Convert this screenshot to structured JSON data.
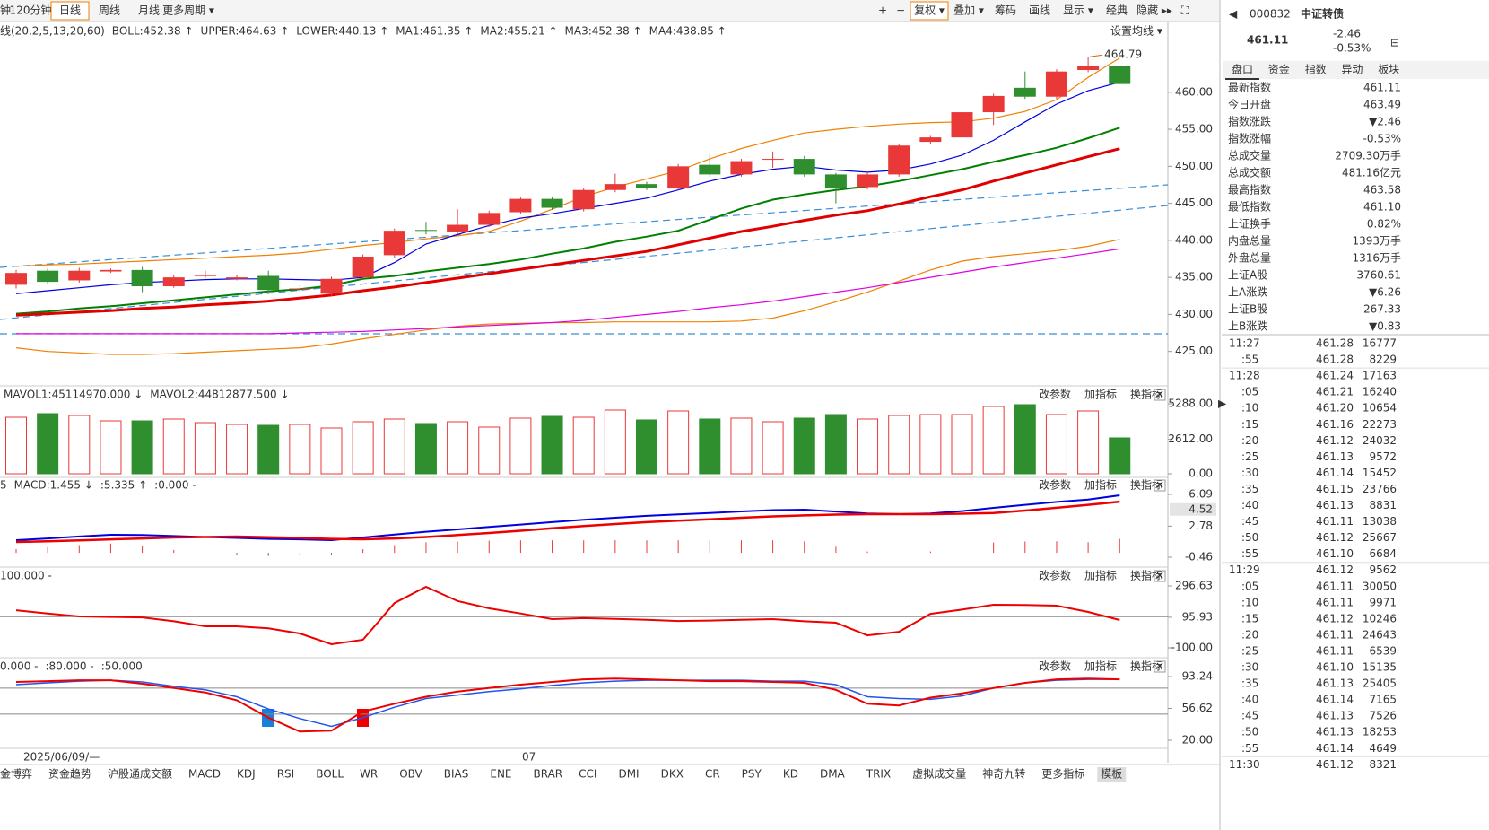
{
  "toolbar": {
    "left": [
      "钟",
      "120分钟",
      "日线",
      "周线",
      "月线",
      "更多周期 ▾"
    ],
    "active": 2,
    "right": [
      "+",
      "−",
      "复权 ▾",
      "叠加 ▾",
      "筹码",
      "画线",
      "显示 ▾",
      "经典",
      "隐藏 ▸▸",
      "⛶"
    ]
  },
  "panel_controls": [
    "改参数",
    "加指标",
    "换指标"
  ],
  "main_chart": {
    "legend": [
      {
        "text": "线(20,2,5,13,20,60)",
        "color": "#333333"
      },
      {
        "text": "BOLL:452.38 ↑",
        "color": "#e00000"
      },
      {
        "text": "UPPER:464.63 ↑",
        "color": "#f08000"
      },
      {
        "text": "LOWER:440.13 ↑",
        "color": "#f08000"
      },
      {
        "text": "MA1:461.35 ↑",
        "color": "#0000e0"
      },
      {
        "text": "MA2:455.21 ↑",
        "color": "#008000"
      },
      {
        "text": "MA3:452.38 ↑",
        "color": "#e00000"
      },
      {
        "text": "MA4:438.85 ↑",
        "color": "#e000e0"
      }
    ],
    "settings_button": "设置均线 ▾",
    "annotation": "464.79",
    "ylim": [
      420.6,
      467
    ],
    "yticks": [
      {
        "value": 460,
        "label": "460.00"
      },
      {
        "value": 455,
        "label": "455.00"
      },
      {
        "value": 450,
        "label": "450.00"
      },
      {
        "value": 445,
        "label": "445.00"
      },
      {
        "value": 440,
        "label": "440.00"
      },
      {
        "value": 435,
        "label": "435.00"
      },
      {
        "value": 430,
        "label": "430.00"
      },
      {
        "value": 425,
        "label": "425.00"
      }
    ],
    "candles": {
      "open": [
        434.0,
        435.9,
        434.6,
        435.8,
        436.0,
        433.8,
        435.2,
        434.8,
        435.2,
        433.4,
        432.8,
        435.0,
        438.0,
        441.4,
        441.2,
        442.1,
        443.8,
        445.6,
        444.2,
        446.8,
        447.6,
        447.0,
        450.2,
        448.9,
        451.0,
        451.0,
        448.9,
        447.2,
        448.9,
        453.3,
        453.9,
        457.3,
        460.6,
        459.4,
        463.0,
        463.49
      ],
      "high": [
        436.0,
        436.2,
        436.3,
        436.2,
        436.4,
        435.3,
        435.9,
        435.3,
        435.9,
        433.9,
        435.1,
        438.1,
        441.6,
        442.5,
        444.2,
        444.0,
        445.9,
        445.9,
        447.1,
        449.0,
        447.9,
        450.3,
        451.6,
        451.0,
        452.0,
        451.4,
        449.1,
        449.1,
        453.0,
        454.1,
        457.6,
        459.8,
        462.8,
        463.1,
        464.79,
        463.58
      ],
      "low": [
        433.5,
        434.1,
        434.3,
        435.6,
        433.0,
        433.6,
        434.9,
        434.6,
        433.0,
        433.1,
        432.5,
        434.8,
        437.7,
        440.8,
        440.9,
        441.8,
        443.5,
        444.1,
        443.9,
        446.5,
        446.8,
        446.8,
        448.6,
        448.6,
        449.8,
        448.6,
        445.0,
        446.9,
        448.6,
        453.0,
        453.6,
        455.6,
        459.1,
        459.1,
        462.7,
        461.1
      ],
      "close": [
        435.6,
        434.4,
        435.9,
        436.0,
        433.8,
        435.0,
        435.3,
        435.0,
        433.3,
        433.5,
        434.8,
        437.8,
        441.3,
        441.3,
        442.1,
        443.7,
        445.6,
        444.4,
        446.8,
        447.6,
        447.1,
        450.0,
        448.9,
        450.7,
        451.0,
        448.9,
        447.0,
        448.9,
        452.8,
        453.9,
        457.3,
        459.5,
        459.4,
        462.8,
        463.6,
        461.11
      ]
    },
    "lines": [
      {
        "color": "#f08000",
        "width": 1.2,
        "values": [
          436.5,
          436.7,
          436.8,
          437.0,
          437.2,
          437.4,
          437.6,
          437.8,
          438.0,
          438.3,
          438.8,
          439.3,
          439.7,
          440.2,
          440.6,
          441.2,
          442.6,
          444.2,
          445.9,
          447.2,
          448.3,
          449.4,
          451.0,
          452.4,
          453.5,
          454.5,
          455.0,
          455.4,
          455.7,
          455.9,
          456.0,
          456.5,
          457.4,
          459.0,
          462.0,
          464.63
        ]
      },
      {
        "color": "#f08000",
        "width": 1.2,
        "values": [
          425.5,
          425.0,
          424.8,
          424.6,
          424.6,
          424.7,
          424.9,
          425.1,
          425.3,
          425.5,
          426.0,
          426.7,
          427.3,
          427.9,
          428.4,
          428.7,
          428.8,
          428.9,
          428.9,
          429.0,
          429.0,
          429.0,
          429.0,
          429.1,
          429.5,
          430.5,
          431.7,
          433.0,
          434.5,
          436.0,
          437.2,
          437.8,
          438.2,
          438.6,
          439.2,
          440.13
        ]
      },
      {
        "color": "#e000e0",
        "width": 1.2,
        "values": [
          427.4,
          427.4,
          427.4,
          427.4,
          427.4,
          427.4,
          427.4,
          427.4,
          427.4,
          427.5,
          427.6,
          427.7,
          427.9,
          428.1,
          428.3,
          428.5,
          428.7,
          428.9,
          429.2,
          429.6,
          430.0,
          430.4,
          430.9,
          431.3,
          431.8,
          432.4,
          433.0,
          433.6,
          434.3,
          435.0,
          435.7,
          436.4,
          437.0,
          437.6,
          438.2,
          438.85
        ]
      },
      {
        "color": "#0000e0",
        "width": 1.2,
        "values": [
          432.8,
          433.2,
          433.6,
          434.0,
          434.3,
          434.5,
          434.7,
          434.8,
          434.8,
          434.7,
          434.6,
          435.0,
          437.0,
          439.5,
          440.8,
          442.0,
          443.0,
          443.6,
          444.3,
          445.0,
          445.7,
          446.8,
          448.0,
          448.9,
          449.6,
          450.0,
          449.5,
          449.2,
          449.5,
          450.3,
          451.5,
          453.5,
          456.0,
          458.4,
          460.2,
          461.35
        ]
      },
      {
        "color": "#008000",
        "width": 2,
        "values": [
          430.1,
          430.4,
          430.8,
          431.1,
          431.5,
          431.9,
          432.3,
          432.7,
          433.1,
          433.4,
          433.9,
          434.8,
          435.2,
          435.8,
          436.3,
          436.8,
          437.4,
          438.2,
          438.9,
          439.8,
          440.5,
          441.3,
          442.8,
          444.3,
          445.5,
          446.2,
          446.8,
          447.3,
          448.0,
          448.8,
          449.6,
          450.6,
          451.5,
          452.5,
          453.8,
          455.21
        ]
      },
      {
        "color": "#e00000",
        "width": 3,
        "values": [
          429.9,
          430.1,
          430.3,
          430.5,
          430.8,
          431.0,
          431.3,
          431.5,
          431.8,
          432.2,
          432.6,
          433.2,
          433.7,
          434.3,
          434.9,
          435.5,
          436.1,
          436.7,
          437.3,
          437.9,
          438.5,
          439.4,
          440.3,
          441.2,
          441.9,
          442.7,
          443.4,
          444.0,
          444.9,
          445.9,
          446.8,
          448.0,
          449.1,
          450.2,
          451.3,
          452.38
        ]
      }
    ]
  },
  "volume_panel": {
    "header": [
      {
        "text": "MAVOL1:45114970.000 ↓",
        "color": "#c8c800"
      },
      {
        "text": "MAVOL2:44812877.500 ↓",
        "color": "#e000e0"
      }
    ],
    "ylim": [
      0,
      5288
    ],
    "yticks": [
      {
        "value": 5288,
        "label": "5288.00"
      },
      {
        "value": 2612,
        "label": "2612.00"
      },
      {
        "value": 0,
        "label": "0.00"
      }
    ],
    "values": [
      4271,
      4543,
      4407,
      4000,
      4000,
      4136,
      3865,
      3729,
      3661,
      3729,
      3458,
      3932,
      4136,
      3797,
      3932,
      3526,
      4204,
      4339,
      4271,
      4814,
      4068,
      4746,
      4136,
      4204,
      3932,
      4204,
      4475,
      4136,
      4407,
      4475,
      4475,
      5085,
      5221,
      4475,
      4746,
      2712
    ]
  },
  "macd_panel": {
    "header": [
      {
        "text": "5",
        "color": "#e00000"
      },
      {
        "text": "MACD:1.455 ↓",
        "color": "#e000e0"
      },
      {
        "text": ":5.335 ↑",
        "color": "#e00000"
      },
      {
        "text": ":0.000 -",
        "color": "#999999"
      }
    ],
    "ylim": [
      -0.46,
      6.09
    ],
    "yticks": [
      6.09,
      2.78,
      -0.46
    ],
    "marker": 4.52,
    "dif": [
      1.32,
      1.5,
      1.7,
      1.88,
      1.85,
      1.75,
      1.65,
      1.55,
      1.45,
      1.4,
      1.32,
      1.6,
      1.9,
      2.2,
      2.44,
      2.7,
      2.95,
      3.2,
      3.45,
      3.66,
      3.85,
      4.0,
      4.15,
      4.31,
      4.45,
      4.5,
      4.3,
      4.1,
      4.03,
      4.1,
      4.35,
      4.69,
      5.0,
      5.3,
      5.55,
      6.0
    ],
    "dea": [
      1.13,
      1.2,
      1.3,
      1.4,
      1.5,
      1.6,
      1.65,
      1.69,
      1.62,
      1.55,
      1.45,
      1.41,
      1.5,
      1.65,
      1.85,
      2.07,
      2.3,
      2.55,
      2.8,
      3.0,
      3.2,
      3.35,
      3.5,
      3.66,
      3.8,
      3.9,
      3.98,
      4.03,
      4.03,
      4.03,
      4.08,
      4.15,
      4.41,
      4.7,
      5.0,
      5.335
    ],
    "macd": [
      0.38,
      0.6,
      0.8,
      0.96,
      0.7,
      0.3,
      0,
      -0.28,
      -0.34,
      -0.3,
      -0.26,
      0.38,
      0.8,
      1.1,
      1.18,
      1.26,
      1.3,
      1.3,
      1.3,
      1.32,
      1.3,
      1.3,
      1.3,
      1.3,
      1.3,
      1.2,
      0.64,
      0.14,
      0,
      0.14,
      0.54,
      1.08,
      1.18,
      1.2,
      1.1,
      1.455
    ]
  },
  "osc_panel": {
    "refs": [
      {
        "value": 100,
        "label": "100.000 -"
      }
    ],
    "ylim": [
      -100,
      296.63
    ],
    "yticks": [
      296.63,
      95.93,
      {
        "value": -100,
        "label": "-100.00"
      }
    ],
    "values": [
      141,
      120,
      101,
      98,
      95,
      70,
      38,
      38,
      25,
      -8,
      -77,
      -48,
      187,
      291,
      200,
      153,
      120,
      84,
      90,
      85,
      80,
      72,
      75,
      80,
      84,
      70,
      61,
      -20,
      3,
      118,
      145,
      176,
      175,
      170,
      130,
      78
    ]
  },
  "kdj_panel": {
    "refs": [
      {
        "value": 0,
        "label": "0.000 -"
      },
      {
        "value": 80,
        "label": ":80.000 -"
      },
      {
        "value": 50,
        "label": ":50.000"
      }
    ],
    "ylim": [
      20,
      93.24
    ],
    "yticks": [
      93.24,
      56.62,
      {
        "value": 20,
        "label": "20.00"
      }
    ],
    "fast": [
      87,
      88,
      89,
      89,
      85,
      80,
      75,
      66,
      46,
      30,
      31,
      53,
      62,
      70,
      76,
      80,
      84,
      87,
      90,
      91,
      90,
      89,
      88,
      88,
      87,
      86,
      78,
      62,
      60,
      69,
      74,
      80,
      86,
      90,
      91,
      90
    ],
    "slow": [
      84,
      86,
      88,
      89,
      87,
      82,
      78,
      70,
      56,
      45,
      36,
      46,
      58,
      68,
      72,
      76,
      79,
      83,
      86,
      88,
      89,
      89,
      89,
      89,
      88,
      88,
      84,
      70,
      68,
      67,
      71,
      80,
      86,
      89,
      90,
      90
    ]
  },
  "x_axis": [
    "2025/06/09/—",
    "07"
  ],
  "bottom_tabs": [
    "金博弈",
    "资金趋势",
    "沪股通成交额",
    "MACD",
    "KDJ",
    "RSI",
    "BOLL",
    "WR",
    "OBV",
    "BIAS",
    "ENE",
    "BRAR",
    "CCI",
    "DMI",
    "DKX",
    "CR",
    "PSY",
    "KD",
    "DMA",
    "TRIX",
    "虚拟成交量",
    "神奇九转",
    "更多指标",
    "模板"
  ],
  "quote_panel": {
    "code": "000832",
    "name": "中证转债",
    "price": "461.11",
    "change": "-2.46",
    "change_pct": "-0.53%",
    "tabs": [
      "盘口",
      "资金",
      "指数",
      "异动",
      "板块"
    ],
    "rows": [
      [
        "最新指数",
        "461.11",
        "#009900"
      ],
      [
        "今日开盘",
        "463.49",
        "#009900"
      ],
      [
        "指数涨跌",
        "▼2.46",
        "#009900"
      ],
      [
        "指数涨幅",
        "-0.53%",
        "#009900"
      ],
      [
        "总成交量",
        "2709.30万手",
        "#222222"
      ],
      [
        "总成交额",
        "481.16亿元",
        "#0055cc"
      ],
      [
        "最高指数",
        "463.58",
        "#e00000"
      ],
      [
        "最低指数",
        "461.10",
        "#009900"
      ],
      [
        "上证换手",
        "0.82%",
        "#222222"
      ],
      [
        "内盘总量",
        "1393万手",
        "#009900"
      ],
      [
        "外盘总量",
        "1316万手",
        "#e00000"
      ],
      [
        "上证A股",
        "3760.61",
        "#009900"
      ],
      [
        "上A涨跌",
        "▼6.26",
        "#009900"
      ],
      [
        "上证B股",
        "267.33",
        "#009900"
      ],
      [
        "上B涨跌",
        "▼0.83",
        "#009900"
      ]
    ],
    "ticks": [
      [
        "11:27",
        "461.28",
        "16777",
        "#009900"
      ],
      [
        ":55",
        "461.28",
        "8229",
        "#009900"
      ],
      [
        "11:28",
        "461.24",
        "17163",
        "#009900"
      ],
      [
        ":05",
        "461.21",
        "16240",
        "#009900"
      ],
      [
        ":10",
        "461.20",
        "10654",
        "#009900"
      ],
      [
        ":15",
        "461.16",
        "22273",
        "#009900"
      ],
      [
        ":20",
        "461.12",
        "24032",
        "#009900"
      ],
      [
        ":25",
        "461.13",
        "9572",
        "#e00000"
      ],
      [
        ":30",
        "461.14",
        "15452",
        "#e00000"
      ],
      [
        ":35",
        "461.15",
        "23766",
        "#e00000"
      ],
      [
        ":40",
        "461.13",
        "8831",
        "#009900"
      ],
      [
        ":45",
        "461.11",
        "13038",
        "#009900"
      ],
      [
        ":50",
        "461.12",
        "25667",
        "#e00000"
      ],
      [
        ":55",
        "461.10",
        "6684",
        "#009900"
      ],
      [
        "11:29",
        "461.12",
        "9562",
        "#e00000"
      ],
      [
        ":05",
        "461.11",
        "30050",
        "#009900"
      ],
      [
        ":10",
        "461.11",
        "9971",
        "#e00000"
      ],
      [
        ":15",
        "461.12",
        "10246",
        "#e00000"
      ],
      [
        ":20",
        "461.11",
        "24643",
        "#009900"
      ],
      [
        ":25",
        "461.11",
        "6539",
        "#009900"
      ],
      [
        ":30",
        "461.10",
        "15135",
        "#009900"
      ],
      [
        ":35",
        "461.13",
        "25405",
        "#e00000"
      ],
      [
        ":40",
        "461.14",
        "7165",
        "#e00000"
      ],
      [
        ":45",
        "461.13",
        "7526",
        "#009900"
      ],
      [
        ":50",
        "461.13",
        "18253",
        "#e00000"
      ],
      [
        ":55",
        "461.14",
        "4649",
        "#e00000"
      ],
      [
        "11:30",
        "461.12",
        "8321",
        "#009900"
      ]
    ]
  }
}
